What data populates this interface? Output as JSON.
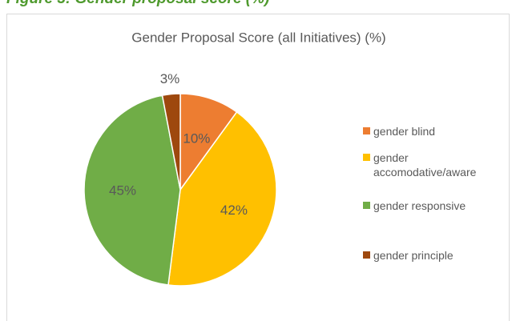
{
  "caption": "Figure 3: Gender proposal score (%)",
  "chart_data": {
    "type": "pie",
    "title": "Gender Proposal Score (all Initiatives) (%)",
    "categories": [
      "gender blind",
      "gender accomodative/aware",
      "gender responsive",
      "gender principle"
    ],
    "values": [
      10,
      42,
      45,
      3
    ],
    "value_labels": [
      "10%",
      "42%",
      "45%",
      "3%"
    ],
    "colors": [
      "#ed7d31",
      "#ffc000",
      "#70ad47",
      "#9e480e"
    ],
    "legend": "right"
  }
}
